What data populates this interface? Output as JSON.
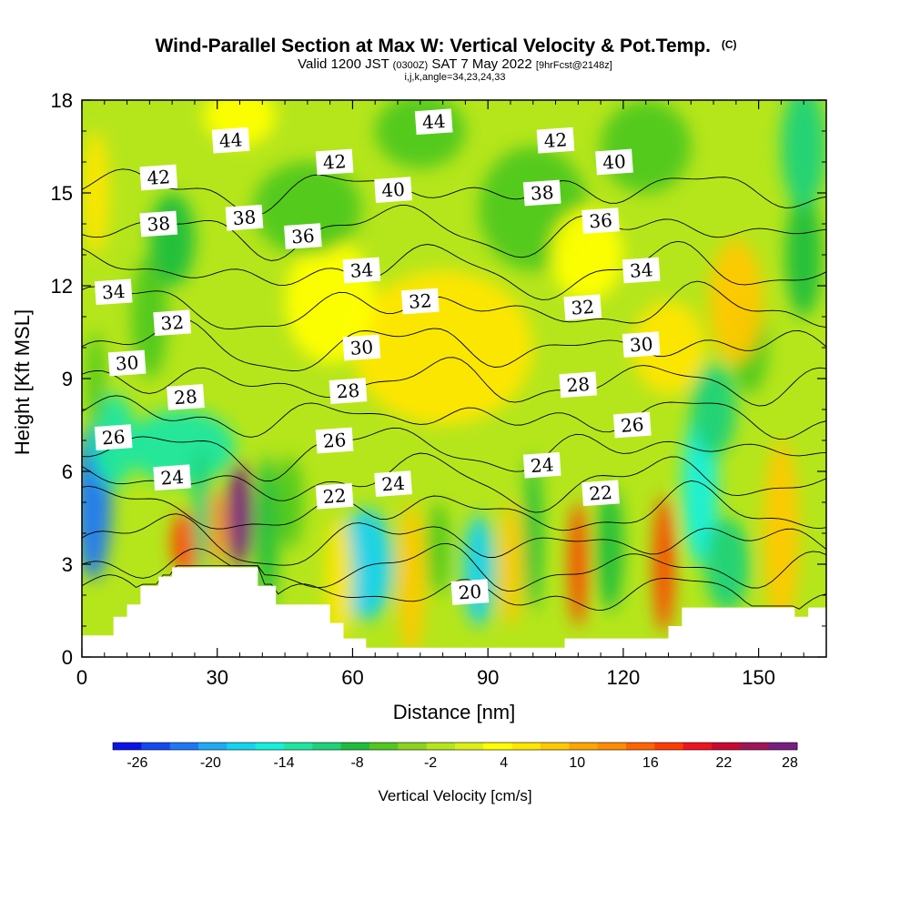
{
  "chart_data": {
    "type": "heatmap",
    "title": "Wind-Parallel Section at Max W: Vertical Velocity & Pot.Temp.",
    "title_mark": "(C)",
    "subtitle_parts": [
      "Valid 1200 JST",
      "(0300Z)",
      "SAT 7 May 2022",
      "[9hrFcst@2148z]"
    ],
    "subtitle2": "i,j,k,angle=34,23,24,33",
    "xlabel": "Distance [nm]",
    "ylabel": "Height [Kft MSL]",
    "xlim": [
      0,
      165
    ],
    "ylim": [
      0,
      18
    ],
    "x_ticks": [
      0,
      30,
      60,
      90,
      120,
      150
    ],
    "y_ticks": [
      0,
      3,
      6,
      9,
      12,
      15,
      18
    ],
    "colorbar": {
      "title": "Vertical Velocity [cm/s]",
      "labels": [
        -26,
        -20,
        -14,
        -8,
        -2,
        4,
        10,
        16,
        22,
        28
      ],
      "min": -28,
      "max": 28
    },
    "contour_field": "Potential temperature (C)",
    "contour_levels": [
      20,
      22,
      24,
      26,
      28,
      30,
      32,
      34,
      36,
      38,
      40,
      42,
      44
    ],
    "contour_labels": [
      {
        "text": "44",
        "x": 33,
        "y": 16.7
      },
      {
        "text": "44",
        "x": 78,
        "y": 17.3
      },
      {
        "text": "42",
        "x": 17,
        "y": 15.5
      },
      {
        "text": "42",
        "x": 56,
        "y": 16.0
      },
      {
        "text": "42",
        "x": 105,
        "y": 16.7
      },
      {
        "text": "40",
        "x": 69,
        "y": 15.1
      },
      {
        "text": "40",
        "x": 118,
        "y": 16.0
      },
      {
        "text": "38",
        "x": 17,
        "y": 14.0
      },
      {
        "text": "38",
        "x": 36,
        "y": 14.2
      },
      {
        "text": "38",
        "x": 102,
        "y": 15.0
      },
      {
        "text": "36",
        "x": 49,
        "y": 13.6
      },
      {
        "text": "36",
        "x": 115,
        "y": 14.1
      },
      {
        "text": "34",
        "x": 7,
        "y": 11.8
      },
      {
        "text": "34",
        "x": 62,
        "y": 12.5
      },
      {
        "text": "34",
        "x": 124,
        "y": 12.5
      },
      {
        "text": "32",
        "x": 20,
        "y": 10.8
      },
      {
        "text": "32",
        "x": 75,
        "y": 11.5
      },
      {
        "text": "32",
        "x": 111,
        "y": 11.3
      },
      {
        "text": "30",
        "x": 10,
        "y": 9.5
      },
      {
        "text": "30",
        "x": 62,
        "y": 10.0
      },
      {
        "text": "30",
        "x": 124,
        "y": 10.1
      },
      {
        "text": "28",
        "x": 23,
        "y": 8.4
      },
      {
        "text": "28",
        "x": 59,
        "y": 8.6
      },
      {
        "text": "28",
        "x": 110,
        "y": 8.8
      },
      {
        "text": "26",
        "x": 7,
        "y": 7.1
      },
      {
        "text": "26",
        "x": 56,
        "y": 7.0
      },
      {
        "text": "26",
        "x": 122,
        "y": 7.5
      },
      {
        "text": "24",
        "x": 20,
        "y": 5.8
      },
      {
        "text": "24",
        "x": 69,
        "y": 5.6
      },
      {
        "text": "24",
        "x": 102,
        "y": 6.2
      },
      {
        "text": "22",
        "x": 56,
        "y": 5.2
      },
      {
        "text": "22",
        "x": 115,
        "y": 5.3
      },
      {
        "text": "20",
        "x": 86,
        "y": 2.1
      }
    ],
    "terrain_profile": [
      [
        0,
        0.7
      ],
      [
        7,
        0.7
      ],
      [
        7,
        1.3
      ],
      [
        10,
        1.3
      ],
      [
        10,
        1.7
      ],
      [
        13,
        1.7
      ],
      [
        13,
        2.3
      ],
      [
        17,
        2.3
      ],
      [
        17,
        2.6
      ],
      [
        20,
        2.6
      ],
      [
        20,
        2.9
      ],
      [
        39,
        2.9
      ],
      [
        39,
        2.3
      ],
      [
        43,
        2.3
      ],
      [
        43,
        1.7
      ],
      [
        55,
        1.7
      ],
      [
        55,
        1.1
      ],
      [
        58,
        1.1
      ],
      [
        58,
        0.6
      ],
      [
        63,
        0.6
      ],
      [
        63,
        0.3
      ],
      [
        107,
        0.3
      ],
      [
        107,
        0.6
      ],
      [
        130,
        0.6
      ],
      [
        130,
        1.0
      ],
      [
        133,
        1.0
      ],
      [
        133,
        1.6
      ],
      [
        158,
        1.6
      ],
      [
        158,
        1.3
      ],
      [
        161,
        1.3
      ],
      [
        161,
        1.6
      ],
      [
        165,
        1.6
      ]
    ],
    "w_features": [
      {
        "x": 2.5,
        "y": 5.0,
        "sx": 4.0,
        "sy": 2.5,
        "a": -22
      },
      {
        "x": 7,
        "y": 7.0,
        "sx": 5.0,
        "sy": 1.5,
        "a": -12
      },
      {
        "x": 22,
        "y": 6.8,
        "sx": 12.0,
        "sy": 1.2,
        "a": -14
      },
      {
        "x": 35,
        "y": 4.6,
        "sx": 2.8,
        "sy": 1.7,
        "a": 28
      },
      {
        "x": 30,
        "y": 4.2,
        "sx": 2.0,
        "sy": 1.2,
        "a": 12
      },
      {
        "x": 23,
        "y": 3.7,
        "sx": 3.0,
        "sy": 1.0,
        "a": 18
      },
      {
        "x": 26.5,
        "y": 4.8,
        "sx": 2.0,
        "sy": 2.0,
        "a": -10
      },
      {
        "x": 41,
        "y": 4.0,
        "sx": 2.5,
        "sy": 2.5,
        "a": -9
      },
      {
        "x": 46,
        "y": 5.0,
        "sx": 3.0,
        "sy": 1.5,
        "a": -5
      },
      {
        "x": 63,
        "y": 3.0,
        "sx": 6.0,
        "sy": 1.8,
        "a": -17
      },
      {
        "x": 57,
        "y": 2.5,
        "sx": 3.0,
        "sy": 2.0,
        "a": 6
      },
      {
        "x": 73,
        "y": 2.5,
        "sx": 3.0,
        "sy": 2.5,
        "a": 7
      },
      {
        "x": 79,
        "y": 3.5,
        "sx": 2.5,
        "sy": 1.5,
        "a": -6
      },
      {
        "x": 88,
        "y": 2.8,
        "sx": 3.5,
        "sy": 1.8,
        "a": -18
      },
      {
        "x": 95,
        "y": 3.0,
        "sx": 2.5,
        "sy": 2.0,
        "a": 7
      },
      {
        "x": 100,
        "y": 4.0,
        "sx": 2.0,
        "sy": 2.5,
        "a": -8
      },
      {
        "x": 110,
        "y": 3.0,
        "sx": 2.0,
        "sy": 2.0,
        "a": 18
      },
      {
        "x": 117,
        "y": 3.5,
        "sx": 3.0,
        "sy": 2.0,
        "a": -8
      },
      {
        "x": 129,
        "y": 3.0,
        "sx": 2.2,
        "sy": 2.2,
        "a": 18
      },
      {
        "x": 137,
        "y": 5.5,
        "sx": 4.0,
        "sy": 2.5,
        "a": -15
      },
      {
        "x": 140,
        "y": 8.0,
        "sx": 5.0,
        "sy": 1.5,
        "a": -11
      },
      {
        "x": 143,
        "y": 3.0,
        "sx": 5.0,
        "sy": 1.5,
        "a": -11
      },
      {
        "x": 155,
        "y": 4.0,
        "sx": 4.0,
        "sy": 3.0,
        "a": 7
      },
      {
        "x": 148,
        "y": 10.0,
        "sx": 4.0,
        "sy": 1.5,
        "a": -6
      },
      {
        "x": 130,
        "y": 10.0,
        "sx": 8.0,
        "sy": 1.5,
        "a": 5
      },
      {
        "x": 145,
        "y": 11.5,
        "sx": 6.0,
        "sy": 2.0,
        "a": 9
      },
      {
        "x": 160,
        "y": 13.0,
        "sx": 4.0,
        "sy": 2.0,
        "a": -8
      },
      {
        "x": 80,
        "y": 10.0,
        "sx": 20.0,
        "sy": 2.5,
        "a": 5
      },
      {
        "x": 55,
        "y": 11.5,
        "sx": 10.0,
        "sy": 2.0,
        "a": 3
      },
      {
        "x": 15,
        "y": 11.0,
        "sx": 4.0,
        "sy": 2.0,
        "a": -5
      },
      {
        "x": 20,
        "y": 13.5,
        "sx": 5.0,
        "sy": 1.5,
        "a": -8
      },
      {
        "x": 50,
        "y": 14.5,
        "sx": 12.0,
        "sy": 1.5,
        "a": -6
      },
      {
        "x": 100,
        "y": 14.5,
        "sx": 12.0,
        "sy": 2.0,
        "a": -7
      },
      {
        "x": 125,
        "y": 16.5,
        "sx": 10.0,
        "sy": 1.5,
        "a": -6
      },
      {
        "x": 160,
        "y": 16.5,
        "sx": 5.0,
        "sy": 2.0,
        "a": -10
      },
      {
        "x": 75,
        "y": 17.0,
        "sx": 10.0,
        "sy": 1.2,
        "a": -5
      },
      {
        "x": 3,
        "y": 15.0,
        "sx": 3.0,
        "sy": 2.0,
        "a": 5
      },
      {
        "x": 112,
        "y": 13.0,
        "sx": 8.0,
        "sy": 1.5,
        "a": 4
      },
      {
        "x": 35,
        "y": 17.5,
        "sx": 8.0,
        "sy": 1.0,
        "a": 4
      },
      {
        "x": 3,
        "y": 9.0,
        "sx": 2.0,
        "sy": 1.5,
        "a": -6
      }
    ]
  }
}
